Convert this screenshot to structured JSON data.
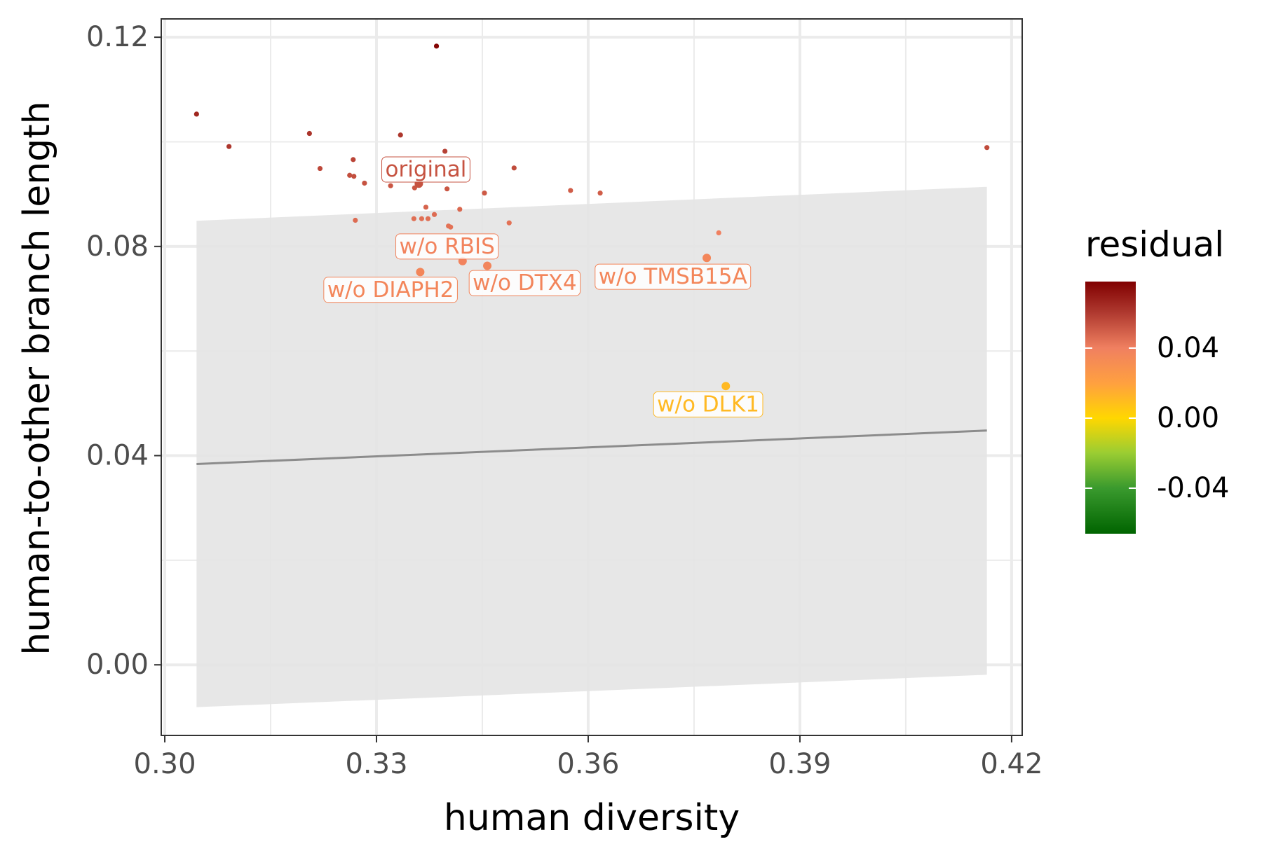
{
  "chart_data": {
    "type": "scatter",
    "xlabel": "human diversity",
    "ylabel": "human-to-other branch length",
    "xlim": [
      0.2995,
      0.4215
    ],
    "ylim": [
      -0.0135,
      0.1235
    ],
    "x_ticks": [
      {
        "value": 0.3,
        "label": "0.30"
      },
      {
        "value": 0.33,
        "label": "0.33"
      },
      {
        "value": 0.36,
        "label": "0.36"
      },
      {
        "value": 0.39,
        "label": "0.39"
      },
      {
        "value": 0.42,
        "label": "0.42"
      }
    ],
    "y_ticks": [
      {
        "value": 0.0,
        "label": "0.00"
      },
      {
        "value": 0.04,
        "label": "0.04"
      },
      {
        "value": 0.08,
        "label": "0.08"
      },
      {
        "value": 0.12,
        "label": "0.12"
      }
    ],
    "grid": true,
    "fit_line": {
      "x": [
        0.3045,
        0.4165
      ],
      "y": [
        0.0384,
        0.0448
      ]
    },
    "confidence_band": {
      "x": [
        0.3045,
        0.4165
      ],
      "lower": [
        -0.0081,
        -0.0019
      ],
      "upper": [
        0.0849,
        0.0914
      ]
    },
    "points": [
      {
        "x": 0.3385,
        "y": 0.1183,
        "residual": 0.076,
        "size": "small"
      },
      {
        "x": 0.3045,
        "y": 0.1053,
        "residual": 0.066,
        "size": "small"
      },
      {
        "x": 0.3091,
        "y": 0.0991,
        "residual": 0.061,
        "size": "small"
      },
      {
        "x": 0.3205,
        "y": 0.1016,
        "residual": 0.062,
        "size": "small"
      },
      {
        "x": 0.3334,
        "y": 0.1013,
        "residual": 0.061,
        "size": "small"
      },
      {
        "x": 0.3397,
        "y": 0.0982,
        "residual": 0.058,
        "size": "small"
      },
      {
        "x": 0.3267,
        "y": 0.0966,
        "residual": 0.057,
        "size": "small"
      },
      {
        "x": 0.322,
        "y": 0.0949,
        "residual": 0.056,
        "size": "small"
      },
      {
        "x": 0.3262,
        "y": 0.0936,
        "residual": 0.054,
        "size": "small"
      },
      {
        "x": 0.3268,
        "y": 0.0934,
        "residual": 0.054,
        "size": "small"
      },
      {
        "x": 0.3283,
        "y": 0.0921,
        "residual": 0.053,
        "size": "small"
      },
      {
        "x": 0.332,
        "y": 0.0916,
        "residual": 0.052,
        "size": "small"
      },
      {
        "x": 0.3354,
        "y": 0.0912,
        "residual": 0.052,
        "size": "small"
      },
      {
        "x": 0.34,
        "y": 0.091,
        "residual": 0.052,
        "size": "small"
      },
      {
        "x": 0.3453,
        "y": 0.0902,
        "residual": 0.051,
        "size": "small"
      },
      {
        "x": 0.3495,
        "y": 0.095,
        "residual": 0.055,
        "size": "small"
      },
      {
        "x": 0.3575,
        "y": 0.0907,
        "residual": 0.05,
        "size": "small"
      },
      {
        "x": 0.3617,
        "y": 0.0902,
        "residual": 0.05,
        "size": "small"
      },
      {
        "x": 0.4165,
        "y": 0.0989,
        "residual": 0.055,
        "size": "small"
      },
      {
        "x": 0.337,
        "y": 0.0875,
        "residual": 0.048,
        "size": "small"
      },
      {
        "x": 0.3418,
        "y": 0.0871,
        "residual": 0.047,
        "size": "small"
      },
      {
        "x": 0.3382,
        "y": 0.0861,
        "residual": 0.046,
        "size": "small"
      },
      {
        "x": 0.327,
        "y": 0.085,
        "residual": 0.046,
        "size": "small"
      },
      {
        "x": 0.3353,
        "y": 0.0853,
        "residual": 0.045,
        "size": "small"
      },
      {
        "x": 0.3364,
        "y": 0.0853,
        "residual": 0.045,
        "size": "small"
      },
      {
        "x": 0.3373,
        "y": 0.0853,
        "residual": 0.045,
        "size": "small"
      },
      {
        "x": 0.3488,
        "y": 0.0845,
        "residual": 0.044,
        "size": "small"
      },
      {
        "x": 0.3402,
        "y": 0.0839,
        "residual": 0.044,
        "size": "small"
      },
      {
        "x": 0.3405,
        "y": 0.0837,
        "residual": 0.044,
        "size": "small"
      },
      {
        "x": 0.3785,
        "y": 0.0826,
        "residual": 0.04,
        "size": "small"
      },
      {
        "x": 0.336,
        "y": 0.092,
        "residual": 0.053,
        "size": "large",
        "label": "original"
      },
      {
        "x": 0.3422,
        "y": 0.0772,
        "residual": 0.038,
        "size": "large",
        "label": "w/o RBIS"
      },
      {
        "x": 0.3362,
        "y": 0.0751,
        "residual": 0.036,
        "size": "large",
        "label": "w/o DIAPH2"
      },
      {
        "x": 0.3457,
        "y": 0.0763,
        "residual": 0.037,
        "size": "large",
        "label": "w/o DTX4"
      },
      {
        "x": 0.3768,
        "y": 0.0778,
        "residual": 0.036,
        "size": "large",
        "label": "w/o TMSB15A"
      },
      {
        "x": 0.3795,
        "y": 0.0533,
        "residual": 0.011,
        "size": "large",
        "label": "w/o DLK1"
      }
    ],
    "point_labels": [
      {
        "text": "original",
        "x": 0.337,
        "y": 0.0947
      },
      {
        "text": "w/o RBIS",
        "x": 0.34,
        "y": 0.08
      },
      {
        "text": "w/o DIAPH2",
        "x": 0.332,
        "y": 0.0717
      },
      {
        "text": "w/o DTX4",
        "x": 0.351,
        "y": 0.073
      },
      {
        "text": "w/o TMSB15A",
        "x": 0.372,
        "y": 0.0742
      },
      {
        "text": "w/o DLK1",
        "x": 0.377,
        "y": 0.0498
      }
    ],
    "legend": {
      "title": "residual",
      "position": "right",
      "range": [
        -0.066,
        0.078
      ],
      "stops": [
        {
          "value": -0.066,
          "color": "#006400"
        },
        {
          "value": -0.04,
          "color": "#3a9a2e"
        },
        {
          "value": -0.02,
          "color": "#9acd32"
        },
        {
          "value": 0.0,
          "color": "#ffd700"
        },
        {
          "value": 0.02,
          "color": "#ffa040"
        },
        {
          "value": 0.04,
          "color": "#f08060"
        },
        {
          "value": 0.06,
          "color": "#b03a30"
        },
        {
          "value": 0.078,
          "color": "#800000"
        }
      ],
      "ticks": [
        {
          "value": 0.04,
          "label": "0.04"
        },
        {
          "value": 0.0,
          "label": "0.00"
        },
        {
          "value": -0.04,
          "label": "-0.04"
        }
      ]
    },
    "colors": {
      "fit_line": "#8c8c8c",
      "band": "#e4e4e4",
      "grid": "#ebebeb",
      "panel_border": "#333333"
    }
  }
}
